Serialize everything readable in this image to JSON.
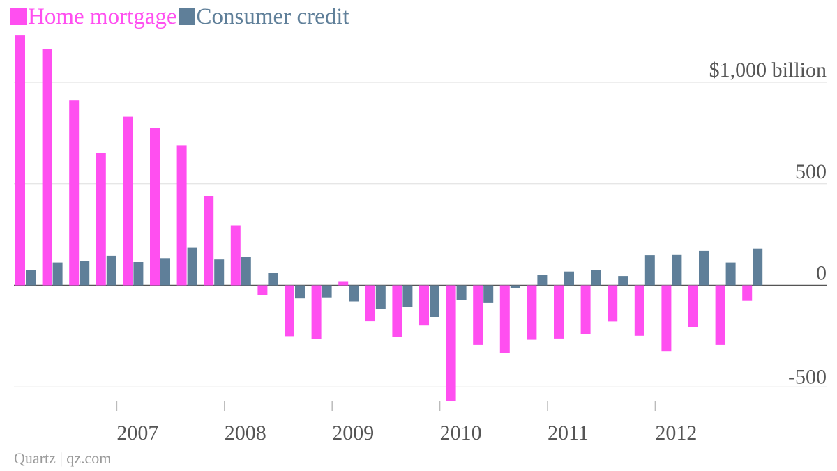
{
  "legend": {
    "items": [
      {
        "label": "Home mortgage",
        "color": "#ff4ff0"
      },
      {
        "label": "Consumer credit",
        "color": "#5f7f99"
      }
    ]
  },
  "source": "Quartz | qz.com",
  "chart_data": {
    "type": "bar",
    "title": "",
    "xlabel": "",
    "ylabel": "",
    "ylim": [
      -600,
      1250
    ],
    "y_unit": "$ billion",
    "yticks": [
      {
        "value": 1000,
        "label": "$1,000 billion"
      },
      {
        "value": 500,
        "label": "500"
      },
      {
        "value": 0,
        "label": "0"
      },
      {
        "value": -500,
        "label": "-500"
      }
    ],
    "x_ticks": [
      "2007",
      "2008",
      "2009",
      "2010",
      "2011",
      "2012"
    ],
    "categories": [
      "2006 Q1",
      "2006 Q2",
      "2006 Q3",
      "2006 Q4",
      "2007 Q1",
      "2007 Q2",
      "2007 Q3",
      "2007 Q4",
      "2008 Q1",
      "2008 Q2",
      "2008 Q3",
      "2008 Q4",
      "2009 Q1",
      "2009 Q2",
      "2009 Q3",
      "2009 Q4",
      "2010 Q1",
      "2010 Q2",
      "2010 Q3",
      "2010 Q4",
      "2011 Q1",
      "2011 Q2",
      "2011 Q3",
      "2011 Q4",
      "2012 Q1",
      "2012 Q2",
      "2012 Q3",
      "2012 Q4"
    ],
    "series": [
      {
        "name": "Home mortgage",
        "color": "#ff4ff0",
        "values": [
          1233,
          1163,
          910,
          650,
          830,
          776,
          690,
          438,
          295,
          -47,
          -250,
          -263,
          17,
          -177,
          -253,
          -198,
          -570,
          -293,
          -333,
          -268,
          -262,
          -240,
          -178,
          -248,
          -325,
          -206,
          -293,
          -76
        ]
      },
      {
        "name": "Consumer credit",
        "color": "#5f7f99",
        "values": [
          75,
          113,
          121,
          146,
          115,
          131,
          185,
          128,
          139,
          60,
          -64,
          -59,
          -79,
          -117,
          -107,
          -156,
          -73,
          -87,
          -14,
          50,
          68,
          76,
          46,
          149,
          150,
          170,
          113,
          181
        ]
      }
    ],
    "grid": true,
    "legend_position": "top-left"
  }
}
